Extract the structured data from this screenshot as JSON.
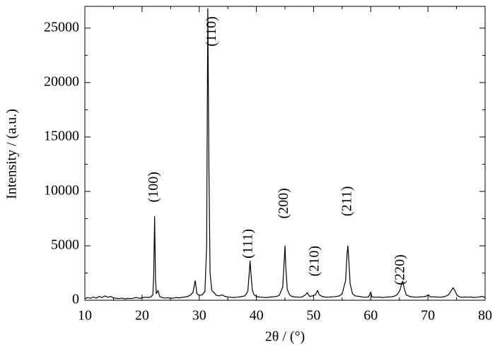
{
  "chart_data": {
    "type": "line",
    "xlabel": "2θ / (°)",
    "ylabel": "Intensity / (a.u.)",
    "xlim": [
      10,
      80
    ],
    "xticks": [
      10,
      20,
      30,
      40,
      50,
      60,
      70,
      80
    ],
    "xminorticks": [
      15,
      25,
      35,
      45,
      55,
      65,
      75
    ],
    "ylim": [
      0,
      27000
    ],
    "yticks": [
      0,
      5000,
      10000,
      15000,
      20000,
      25000
    ],
    "yminorticks": [
      2500,
      7500,
      12500,
      17500,
      22500
    ],
    "grid": false,
    "series": [
      {
        "color": "#000000",
        "x": [
          10,
          10.5,
          11,
          11.5,
          12,
          12.5,
          13,
          13.5,
          14,
          14.5,
          15,
          15.5,
          16,
          16.5,
          17,
          17.5,
          18,
          18.5,
          19,
          19.5,
          20,
          20.5,
          21,
          21.5,
          21.9,
          22.05,
          22.2,
          22.35,
          22.5,
          22.8,
          23.1,
          23.5,
          24,
          24.5,
          25,
          25.5,
          26,
          26.5,
          27,
          27.5,
          28,
          28.5,
          28.9,
          29.3,
          29.6,
          30,
          30.5,
          31,
          31.3,
          31.5,
          31.7,
          31.9,
          32.2,
          32.6,
          33,
          33.5,
          34,
          34.5,
          35,
          35.5,
          36,
          36.5,
          37,
          37.5,
          38,
          38.5,
          38.75,
          38.9,
          39.05,
          39.3,
          39.6,
          40,
          40.5,
          41,
          41.5,
          42,
          42.5,
          43,
          43.5,
          44,
          44.6,
          44.85,
          45,
          45.15,
          45.4,
          45.8,
          46.2,
          46.8,
          47.5,
          48,
          48.6,
          48.9,
          49.3,
          49.8,
          50.3,
          50.7,
          51,
          51.5,
          52,
          52.5,
          53,
          53.5,
          54,
          54.5,
          55,
          55.6,
          55.85,
          56,
          56.15,
          56.4,
          56.8,
          57.3,
          58,
          58.5,
          59,
          59.6,
          60,
          60.2,
          60.8,
          61.5,
          62,
          62.5,
          63,
          63.5,
          64,
          64.6,
          65.1,
          65.45,
          65.6,
          65.8,
          66.2,
          66.8,
          67.5,
          68,
          68.5,
          69,
          69.6,
          70.1,
          70.4,
          71,
          71.5,
          72,
          72.5,
          73,
          73.6,
          74.1,
          74.4,
          74.7,
          75.1,
          75.6,
          76,
          76.5,
          77,
          77.5,
          78,
          78.5,
          79,
          79.5,
          80
        ],
        "values": [
          150,
          250,
          180,
          300,
          200,
          350,
          250,
          400,
          280,
          350,
          220,
          180,
          150,
          200,
          120,
          180,
          150,
          200,
          250,
          180,
          220,
          280,
          250,
          300,
          500,
          2500,
          7700,
          2000,
          600,
          900,
          350,
          250,
          200,
          230,
          180,
          200,
          250,
          220,
          260,
          300,
          350,
          500,
          700,
          1800,
          600,
          450,
          500,
          800,
          5000,
          26800,
          12000,
          2500,
          900,
          700,
          450,
          400,
          500,
          350,
          300,
          280,
          250,
          280,
          300,
          350,
          400,
          800,
          2500,
          3600,
          2400,
          900,
          500,
          350,
          300,
          280,
          250,
          260,
          300,
          320,
          350,
          450,
          1200,
          3500,
          5000,
          3000,
          1000,
          500,
          350,
          300,
          280,
          300,
          500,
          700,
          350,
          400,
          500,
          900,
          500,
          350,
          300,
          280,
          300,
          320,
          350,
          400,
          600,
          1800,
          4200,
          5000,
          3800,
          1500,
          600,
          400,
          350,
          300,
          280,
          300,
          750,
          300,
          280,
          300,
          250,
          280,
          300,
          320,
          350,
          500,
          900,
          1600,
          1750,
          1200,
          500,
          350,
          300,
          280,
          300,
          320,
          350,
          500,
          300,
          320,
          300,
          280,
          300,
          350,
          500,
          900,
          1150,
          900,
          450,
          300,
          280,
          300,
          280,
          300,
          250,
          280,
          300,
          350,
          250
        ]
      }
    ],
    "annotations": [
      {
        "text": "(100)",
        "x": 22.2,
        "y": 10400
      },
      {
        "text": "(110)",
        "x": 32.3,
        "y": 24700
      },
      {
        "text": "(111)",
        "x": 38.7,
        "y": 5200
      },
      {
        "text": "(200)",
        "x": 44.9,
        "y": 8900
      },
      {
        "text": "(210)",
        "x": 50.3,
        "y": 3600
      },
      {
        "text": "(211)",
        "x": 56.0,
        "y": 9100
      },
      {
        "text": "(220)",
        "x": 65.3,
        "y": 2800
      }
    ]
  }
}
